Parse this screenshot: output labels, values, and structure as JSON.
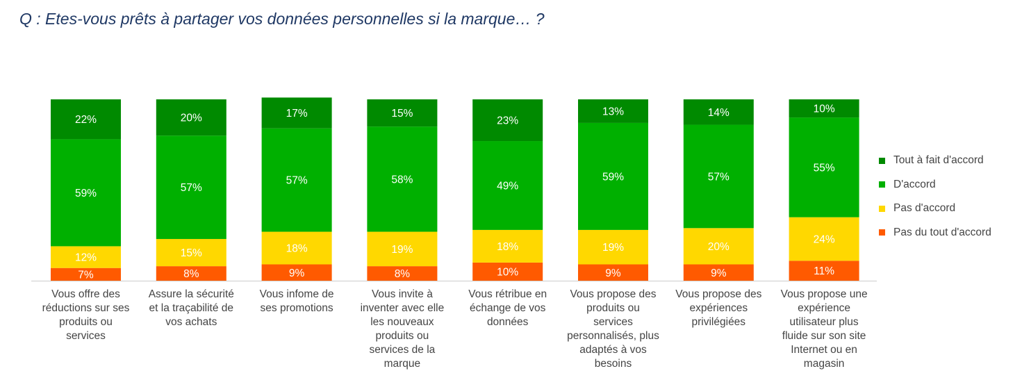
{
  "title": "Q : Etes-vous prêts à partager vos données personnelles si la marque… ?",
  "chart_data": {
    "type": "bar",
    "stacked": true,
    "categories": [
      "Vous offre des\nréductions sur ses\nproduits ou\nservices",
      "Assure la sécurité\net la traçabilité de\nvos achats",
      "Vous infome de\nses promotions",
      "Vous invite à\ninventer avec elle\nles nouveaux\nproduits ou\nservices de la\nmarque",
      "Vous rétribue en\néchange de vos\ndonnées",
      "Vous propose des\nproduits ou\nservices\npersonnalisés, plus\nadaptés à vos\nbesoins",
      "Vous propose des\nexpériences\nprivilégiées",
      "Vous propose une\nexpérience\nutilisateur plus\nfluide sur son site\nInternet ou en\nmagasin"
    ],
    "series": [
      {
        "name": "Pas du tout d'accord",
        "color": "#ff5a00",
        "values": [
          7,
          8,
          9,
          8,
          10,
          9,
          9,
          11
        ]
      },
      {
        "name": "Pas d'accord",
        "color": "#ffd800",
        "values": [
          12,
          15,
          18,
          19,
          18,
          19,
          20,
          24
        ]
      },
      {
        "name": "D'accord",
        "color": "#00b000",
        "values": [
          59,
          57,
          57,
          58,
          49,
          59,
          57,
          55
        ]
      },
      {
        "name": "Tout à fait d'accord",
        "color": "#008a00",
        "values": [
          22,
          20,
          17,
          15,
          23,
          13,
          14,
          10
        ]
      }
    ],
    "legend_order": [
      "Tout à fait d'accord",
      "D'accord",
      "Pas d'accord",
      "Pas du tout d'accord"
    ],
    "value_suffix": "%",
    "legend_position": "right",
    "grid": false
  }
}
